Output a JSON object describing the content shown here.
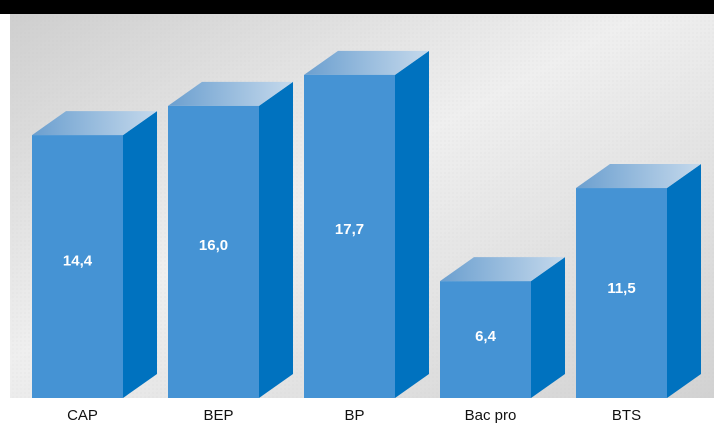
{
  "chart_data": {
    "type": "bar",
    "categories": [
      "CAP",
      "BEP",
      "BP",
      "Bac pro",
      "BTS"
    ],
    "values": [
      14.4,
      16.0,
      17.7,
      6.4,
      11.5
    ],
    "value_labels": [
      "14,4",
      "16,0",
      "17,7",
      "6,4",
      "11,5"
    ],
    "title": "",
    "xlabel": "",
    "ylabel": "",
    "ylim": [
      0,
      19.5
    ],
    "grid": false,
    "legend": "none",
    "style": "3d-box"
  },
  "colors": {
    "bar_front": "#4593d4",
    "bar_side": "#0072bf",
    "bar_top_light": "#c5d9ec",
    "bar_top_dark": "#6b9fcf",
    "plot_bg_light": "#ececec",
    "plot_bg_dark": "#c8c8c8",
    "label_text": "#ffffff",
    "category_text": "#111111"
  }
}
